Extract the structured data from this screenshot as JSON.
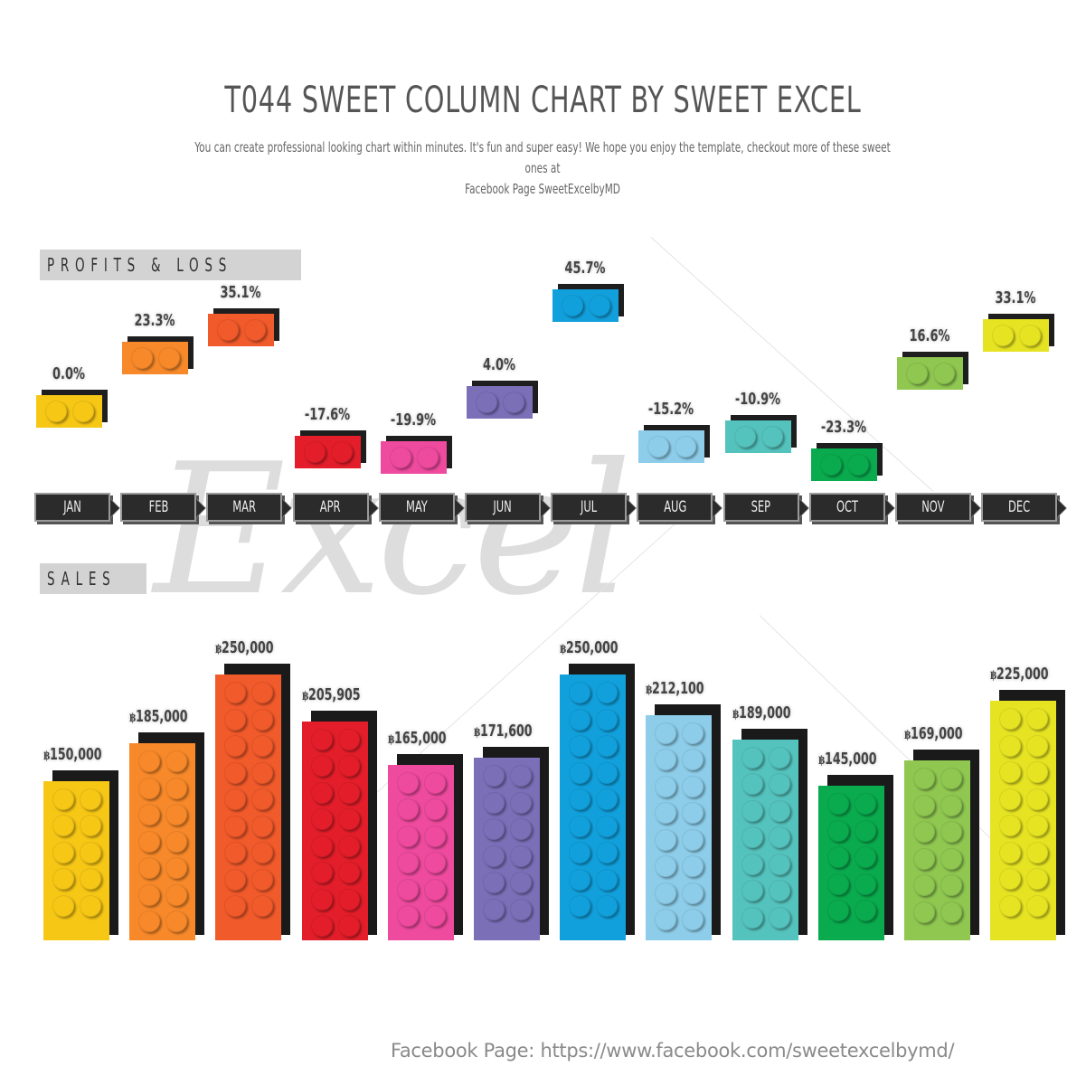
{
  "header": {
    "title": "T044 SWEET COLUMN CHART BY SWEET EXCEL",
    "subtitle_line1": "You can create professional looking chart within minutes. It's fun and super easy! We hope you enjoy the template, checkout more of these sweet ones at",
    "subtitle_line2": "Facebook Page SweetExcelbyMD"
  },
  "sections": {
    "profits_label": "PROFITS & LOSS",
    "sales_label": "SALES"
  },
  "watermark": "Excel",
  "footer": {
    "text": "Facebook Page: https://www.facebook.com/sweetexcelbymd/"
  },
  "currency_symbol": "฿",
  "months": [
    "JAN",
    "FEB",
    "MAR",
    "APR",
    "MAY",
    "JUN",
    "JUL",
    "AUG",
    "SEP",
    "OCT",
    "NOV",
    "DEC"
  ],
  "colors": [
    "#f7c716",
    "#f7892a",
    "#f15a2b",
    "#e31e2a",
    "#ee4a9e",
    "#7b6fb8",
    "#12a0dc",
    "#8dcde9",
    "#55c3bd",
    "#0aab4e",
    "#8fc751",
    "#e6e422"
  ],
  "profits": {
    "labels": [
      "0.0%",
      "23.3%",
      "35.1%",
      "-17.6%",
      "-19.9%",
      "4.0%",
      "45.7%",
      "-15.2%",
      "-10.9%",
      "-23.3%",
      "16.6%",
      "33.1%"
    ]
  },
  "sales": {
    "labels": [
      "150,000",
      "185,000",
      "250,000",
      "205,905",
      "165,000",
      "171,600",
      "250,000",
      "212,100",
      "189,000",
      "145,000",
      "169,000",
      "225,000"
    ]
  },
  "chart_data": [
    {
      "type": "line",
      "title": "PROFITS & LOSS",
      "categories": [
        "JAN",
        "FEB",
        "MAR",
        "APR",
        "MAY",
        "JUN",
        "JUL",
        "AUG",
        "SEP",
        "OCT",
        "NOV",
        "DEC"
      ],
      "values": [
        0.0,
        23.3,
        35.1,
        -17.6,
        -19.9,
        4.0,
        45.7,
        -15.2,
        -10.9,
        -23.3,
        16.6,
        33.1
      ],
      "unit": "%",
      "xlabel": "",
      "ylabel": "",
      "grid": false,
      "legend": "none"
    },
    {
      "type": "bar",
      "title": "SALES",
      "categories": [
        "JAN",
        "FEB",
        "MAR",
        "APR",
        "MAY",
        "JUN",
        "JUL",
        "AUG",
        "SEP",
        "OCT",
        "NOV",
        "DEC"
      ],
      "values": [
        150000,
        185000,
        250000,
        205905,
        165000,
        171600,
        250000,
        212100,
        189000,
        145000,
        169000,
        225000
      ],
      "unit": "THB (฿)",
      "xlabel": "",
      "ylabel": "",
      "ylim": [
        0,
        250000
      ],
      "grid": false,
      "legend": "none"
    }
  ]
}
